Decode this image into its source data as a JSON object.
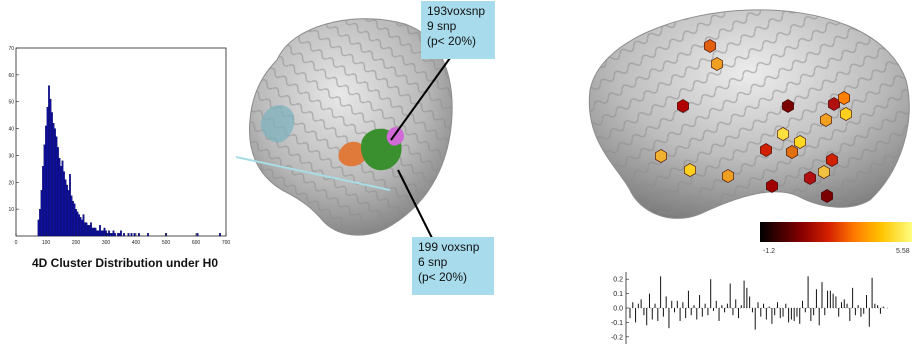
{
  "figure": {
    "histogram_caption": "4D Cluster Distribution under H0",
    "callout_top": {
      "line1": "193voxsnp",
      "line2": "9 snp",
      "line3": "(p< 20%)"
    },
    "callout_bottom": {
      "line1": "199 voxsnp",
      "line2": "6 snp",
      "line3": "(p< 20%)"
    },
    "colorbar": {
      "min_label": "-1.2",
      "max_label": "5.58"
    },
    "colors": {
      "histogram_bar": "#1010a0",
      "callout_bg": "#a8dcec",
      "brain": "#bdbdbd"
    }
  },
  "chart_data": [
    {
      "type": "bar",
      "title": "",
      "xlabel": "",
      "ylabel": "",
      "xlim": [
        0,
        700
      ],
      "ylim": [
        0,
        70
      ],
      "xticks": [
        0,
        100,
        200,
        300,
        400,
        500,
        600,
        700
      ],
      "yticks": [
        10,
        20,
        30,
        40,
        50,
        60,
        70
      ],
      "x": [
        75,
        80,
        85,
        90,
        95,
        100,
        105,
        110,
        115,
        120,
        125,
        130,
        135,
        140,
        145,
        150,
        155,
        160,
        165,
        170,
        175,
        180,
        185,
        190,
        195,
        200,
        205,
        210,
        215,
        220,
        225,
        230,
        235,
        240,
        245,
        250,
        255,
        260,
        265,
        270,
        275,
        280,
        285,
        290,
        295,
        300,
        305,
        310,
        315,
        320,
        325,
        330,
        340,
        345,
        350,
        360,
        375,
        385,
        395,
        410,
        440,
        500,
        605,
        680
      ],
      "values": [
        6,
        10,
        17,
        26,
        34,
        41,
        48,
        56,
        51,
        46,
        42,
        40,
        37,
        33,
        29,
        26,
        28,
        24,
        21,
        19,
        17,
        23,
        15,
        13,
        12,
        10,
        9,
        8,
        7,
        6,
        8,
        5,
        5,
        4,
        4,
        5,
        3,
        3,
        3,
        2,
        2,
        4,
        2,
        2,
        3,
        2,
        1,
        2,
        1,
        1,
        2,
        1,
        1,
        1,
        2,
        1,
        1,
        1,
        1,
        1,
        1,
        1,
        1,
        1
      ]
    },
    {
      "type": "bar",
      "title": "",
      "xlabel": "",
      "ylabel": "",
      "ylim": [
        -0.25,
        0.25
      ],
      "yticks": [
        -0.2,
        -0.1,
        0.0,
        0.1,
        0.2
      ],
      "ytick_labels": [
        "-0.2",
        "-0.1",
        "0.0",
        "0.1",
        "0.2"
      ],
      "values": [
        -0.07,
        0.04,
        -0.1,
        0.03,
        0.06,
        -0.05,
        -0.12,
        0.1,
        -0.08,
        0.03,
        -0.09,
        0.22,
        -0.06,
        0.08,
        -0.14,
        0.05,
        -0.03,
        0.05,
        -0.09,
        0.04,
        -0.07,
        0.12,
        -0.05,
        0.02,
        -0.08,
        0.09,
        -0.06,
        0.03,
        -0.05,
        0.2,
        -0.02,
        0.05,
        -0.09,
        0.02,
        -0.03,
        0.03,
        0.17,
        -0.05,
        0.06,
        -0.07,
        0.02,
        0.19,
        0.14,
        0.08,
        -0.03,
        -0.15,
        0.04,
        -0.06,
        0.03,
        -0.08,
        0.01,
        -0.11,
        -0.05,
        0.04,
        -0.07,
        -0.06,
        0.03,
        -0.1,
        -0.08,
        -0.09,
        -0.06,
        -0.11,
        0.05,
        -0.03,
        0.22,
        -0.09,
        -0.05,
        0.13,
        -0.12,
        0.18,
        -0.05,
        0.12,
        0.12,
        0.1,
        0.08,
        -0.06,
        0.04,
        0.06,
        0.03,
        -0.09,
        0.14,
        -0.05,
        0.02,
        -0.06,
        -0.04,
        0.09,
        -0.13,
        0.21,
        0.03,
        0.02,
        -0.04,
        0.01
      ]
    }
  ]
}
